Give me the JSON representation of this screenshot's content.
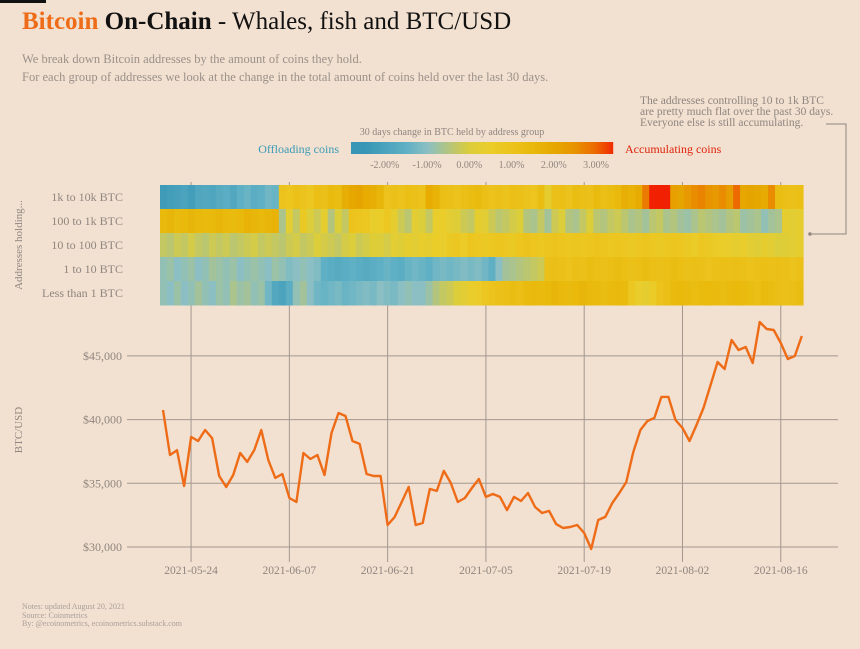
{
  "title": {
    "part1": "Bitcoin",
    "part2": "On-Chain",
    "part3": " - Whales, fish and BTC/USD"
  },
  "subtitle": [
    "We break down Bitcoin addresses by the amount of coins they hold.",
    "For each group of addresses we look at the change in the total amount of coins held over the last 30 days."
  ],
  "annotation": [
    "The addresses controlling 10 to 1k BTC",
    "are pretty much flat over the past 30 days.",
    "Everyone else is still accumulating."
  ],
  "footer": [
    "Notes: updated August 20, 2021",
    "Source: Coinmetrics",
    "By: @ecoinometrics, ecoinometrics.substack.com"
  ],
  "colors": {
    "background": "#f2e0d0",
    "bitcoin_orange": "#ee6c17",
    "offloading": "#3a9bb8",
    "accumulating": "#e0230a",
    "grid": "#9e938c"
  },
  "chart_data": [
    {
      "type": "heatmap",
      "legend": {
        "title": "30 days change in BTC held by address group",
        "left_label": "Offloading coins",
        "right_label": "Accumulating coins",
        "ticks": [
          "-2.00%",
          "-1.00%",
          "0.00%",
          "1.00%",
          "2.00%",
          "3.00%"
        ],
        "tick_values": [
          -2,
          -1,
          0,
          1,
          2,
          3
        ],
        "range": [
          -2.8,
          3.4
        ],
        "scale": [
          [
            -2.5,
            "#3796b5"
          ],
          [
            -1.5,
            "#5fb0c4"
          ],
          [
            -1.0,
            "#8bbfc3"
          ],
          [
            -0.5,
            "#b3c47e"
          ],
          [
            0,
            "#dccd3a"
          ],
          [
            0.5,
            "#ebcd2a"
          ],
          [
            1.0,
            "#ecc31c"
          ],
          [
            1.5,
            "#e9b90c"
          ],
          [
            2.0,
            "#e6a800"
          ],
          [
            2.5,
            "#e89400"
          ],
          [
            3.0,
            "#ed6a00"
          ],
          [
            3.5,
            "#f02000"
          ]
        ]
      },
      "ylabel": "Addresses holding...",
      "x_start": "2021-05-20",
      "x_end": "2021-08-19",
      "frequency": "daily",
      "unit": "%",
      "rows": [
        {
          "label": "1k to 10k BTC",
          "values": [
            -2.3,
            -2.2,
            -2.1,
            -2.0,
            -2.2,
            -1.9,
            -1.8,
            -1.9,
            -1.7,
            -1.6,
            -1.8,
            -1.5,
            -1.4,
            -1.6,
            -1.5,
            -1.3,
            -1.4,
            1.0,
            0.9,
            1.1,
            1.0,
            0.8,
            1.2,
            1.1,
            1.4,
            1.3,
            1.8,
            2.0,
            2.1,
            1.9,
            1.8,
            1.6,
            1.0,
            1.1,
            1.0,
            1.2,
            1.1,
            1.0,
            1.9,
            1.7,
            1.2,
            1.1,
            1.0,
            1.2,
            1.3,
            1.4,
            1.2,
            1.0,
            1.1,
            1.0,
            1.2,
            1.1,
            1.0,
            0.9,
            1.3,
            0.3,
            1.1,
            1.2,
            1.0,
            1.3,
            1.2,
            1.1,
            1.4,
            1.2,
            1.3,
            1.5,
            1.8,
            1.7,
            1.9,
            2.8,
            3.6,
            3.6,
            3.5,
            2.2,
            2.1,
            2.4,
            2.6,
            2.7,
            2.5,
            2.4,
            2.6,
            2.3,
            3.0,
            2.0,
            2.1,
            2.0,
            1.9,
            2.6,
            1.3,
            1.2,
            1.1,
            1.2
          ]
        },
        {
          "label": "100 to 1k BTC",
          "values": [
            1.5,
            1.6,
            1.4,
            1.5,
            1.6,
            1.5,
            1.4,
            1.5,
            1.6,
            1.5,
            1.4,
            1.5,
            1.7,
            1.6,
            1.5,
            1.6,
            1.7,
            -0.6,
            0.2,
            -0.3,
            0.7,
            0.0,
            -0.2,
            0.3,
            -0.5,
            0.0,
            -0.3,
            1.0,
            0.9,
            0.8,
            0.4,
            0.5,
            0.8,
            0.3,
            -0.2,
            -0.4,
            0.2,
            0.0,
            -0.3,
            0.4,
            0.5,
            0.2,
            0.1,
            -0.2,
            -0.3,
            0.3,
            0.2,
            -0.2,
            -0.4,
            -0.3,
            -0.1,
            0.0,
            -0.5,
            -0.6,
            -0.3,
            -0.7,
            -0.2,
            0.0,
            -0.5,
            -0.6,
            -0.3,
            0.0,
            -0.4,
            -0.5,
            -0.3,
            -0.2,
            -0.4,
            -0.6,
            -0.5,
            -0.7,
            -0.4,
            -0.3,
            -0.6,
            -0.5,
            -0.7,
            -0.8,
            -0.6,
            -0.4,
            -0.5,
            -0.6,
            -0.7,
            -0.5,
            -0.4,
            -0.8,
            -0.7,
            -0.6,
            -0.9,
            -0.7,
            -0.6,
            0.3,
            0.2,
            0.3
          ]
        },
        {
          "label": "10 to 100 BTC",
          "values": [
            -0.3,
            -0.4,
            -0.2,
            -0.3,
            -0.1,
            -0.3,
            -0.4,
            -0.2,
            -0.3,
            -0.2,
            -0.4,
            -0.3,
            -0.2,
            -0.1,
            -0.3,
            -0.2,
            -0.3,
            -0.4,
            -0.2,
            -0.1,
            -0.3,
            -0.2,
            0.0,
            -0.1,
            -0.2,
            -0.3,
            -0.1,
            0.0,
            -0.2,
            -0.1,
            0.1,
            0.0,
            -0.1,
            0.2,
            0.1,
            0.3,
            0.2,
            0.4,
            0.3,
            0.5,
            0.4,
            0.7,
            0.8,
            0.6,
            0.9,
            0.8,
            0.7,
            0.8,
            0.9,
            0.8,
            0.7,
            0.9,
            1.0,
            0.9,
            0.8,
            0.9,
            1.0,
            0.9,
            0.8,
            0.9,
            0.8,
            0.9,
            1.0,
            0.9,
            0.8,
            0.9,
            0.8,
            0.7,
            0.8,
            0.9,
            0.8,
            0.7,
            0.8,
            0.9,
            0.8,
            0.7,
            0.6,
            0.8,
            0.7,
            0.6,
            0.5,
            0.4,
            0.3,
            0.4,
            0.2,
            0.1,
            0.3,
            0.2,
            0.0,
            0.1,
            0.2,
            0.3
          ]
        },
        {
          "label": "1 to 10 BTC",
          "values": [
            -0.9,
            -0.8,
            -1.0,
            -0.9,
            -0.8,
            -1.0,
            -0.9,
            -0.7,
            -0.8,
            -0.9,
            -0.8,
            -1.0,
            -0.9,
            -0.8,
            -0.9,
            -1.0,
            -0.8,
            -0.9,
            -1.1,
            -1.0,
            -0.9,
            -1.0,
            -1.1,
            -1.5,
            -1.6,
            -1.7,
            -1.6,
            -1.5,
            -1.6,
            -1.7,
            -1.6,
            -1.5,
            -1.4,
            -1.5,
            -1.6,
            -1.4,
            -1.3,
            -1.4,
            -1.5,
            -1.3,
            -1.2,
            -1.3,
            -1.2,
            -1.1,
            -1.2,
            -1.1,
            -1.3,
            -1.5,
            -1.0,
            -0.7,
            -0.6,
            -0.5,
            -0.4,
            -0.3,
            -0.2,
            1.1,
            1.2,
            1.1,
            1.0,
            1.2,
            1.1,
            1.3,
            1.2,
            1.1,
            1.2,
            1.3,
            1.2,
            1.1,
            1.2,
            1.3,
            1.2,
            1.1,
            1.2,
            1.3,
            1.2,
            1.1,
            1.2,
            1.1,
            1.0,
            1.1,
            1.2,
            1.1,
            1.2,
            1.1,
            1.0,
            1.1,
            1.2,
            1.1,
            1.2,
            1.1,
            1.0,
            1.1
          ]
        },
        {
          "label": "Less than 1 BTC",
          "values": [
            -0.9,
            -1.0,
            -0.8,
            -1.0,
            -0.9,
            -0.7,
            -0.9,
            -1.0,
            -0.8,
            -0.9,
            -0.6,
            -0.8,
            -0.7,
            -0.9,
            -0.8,
            -1.3,
            -1.8,
            -2.0,
            -1.6,
            -0.9,
            -0.7,
            -1.0,
            -1.3,
            -1.4,
            -1.3,
            -1.2,
            -1.4,
            -1.3,
            -1.2,
            -1.1,
            -1.2,
            -1.0,
            -1.1,
            -1.2,
            -1.0,
            -0.9,
            -1.0,
            -1.0,
            -0.8,
            -0.5,
            -0.3,
            -0.2,
            0.0,
            0.2,
            0.4,
            0.6,
            0.8,
            1.0,
            1.1,
            1.2,
            1.3,
            1.2,
            1.4,
            1.5,
            1.4,
            1.5,
            1.6,
            1.5,
            1.4,
            1.5,
            1.6,
            1.5,
            1.4,
            1.3,
            1.4,
            1.5,
            1.4,
            0.8,
            0.4,
            0.3,
            0.6,
            1.0,
            1.2,
            1.4,
            1.5,
            1.4,
            1.3,
            1.4,
            1.5,
            1.4,
            1.3,
            1.4,
            1.5,
            1.4,
            1.3,
            1.2,
            1.4,
            1.3,
            1.2,
            1.1,
            1.2,
            1.3
          ]
        }
      ]
    },
    {
      "type": "line",
      "ylabel": "BTC/USD",
      "xlabel": "",
      "x_start": "2021-05-20",
      "frequency": "daily",
      "ylim": [
        29000,
        48500
      ],
      "yticks": [
        30000,
        35000,
        40000,
        45000
      ],
      "ytick_labels": [
        "$30,000",
        "$35,000",
        "$40,000",
        "$45,000"
      ],
      "xticks": [
        "2021-05-24",
        "2021-06-07",
        "2021-06-21",
        "2021-07-05",
        "2021-07-19",
        "2021-08-02",
        "2021-08-16"
      ],
      "grid": true,
      "line_color": "#ee6c17",
      "series": [
        {
          "values": [
            40750,
            37220,
            37600,
            34790,
            38640,
            38320,
            39180,
            38550,
            35570,
            34710,
            35650,
            37380,
            36680,
            37610,
            39180,
            36830,
            35420,
            35730,
            33850,
            33530,
            37380,
            36910,
            37220,
            35650,
            38950,
            40520,
            40280,
            38320,
            38090,
            35730,
            35570,
            35570,
            31730,
            32360,
            33530,
            34710,
            31730,
            31880,
            34550,
            34400,
            35970,
            35020,
            33530,
            33850,
            34630,
            35340,
            33930,
            34160,
            33930,
            32900,
            33930,
            33610,
            34240,
            33140,
            32670,
            32830,
            31800,
            31490,
            31570,
            31730,
            31100,
            29840,
            32120,
            32360,
            33450,
            34240,
            35100,
            37460,
            39180,
            39890,
            40130,
            41780,
            41780,
            39970,
            39340,
            38320,
            39580,
            40910,
            42720,
            44520,
            43970,
            46250,
            45460,
            45700,
            44440,
            47660,
            47110,
            47030,
            46010,
            44760,
            44990,
            46560
          ]
        }
      ]
    }
  ]
}
